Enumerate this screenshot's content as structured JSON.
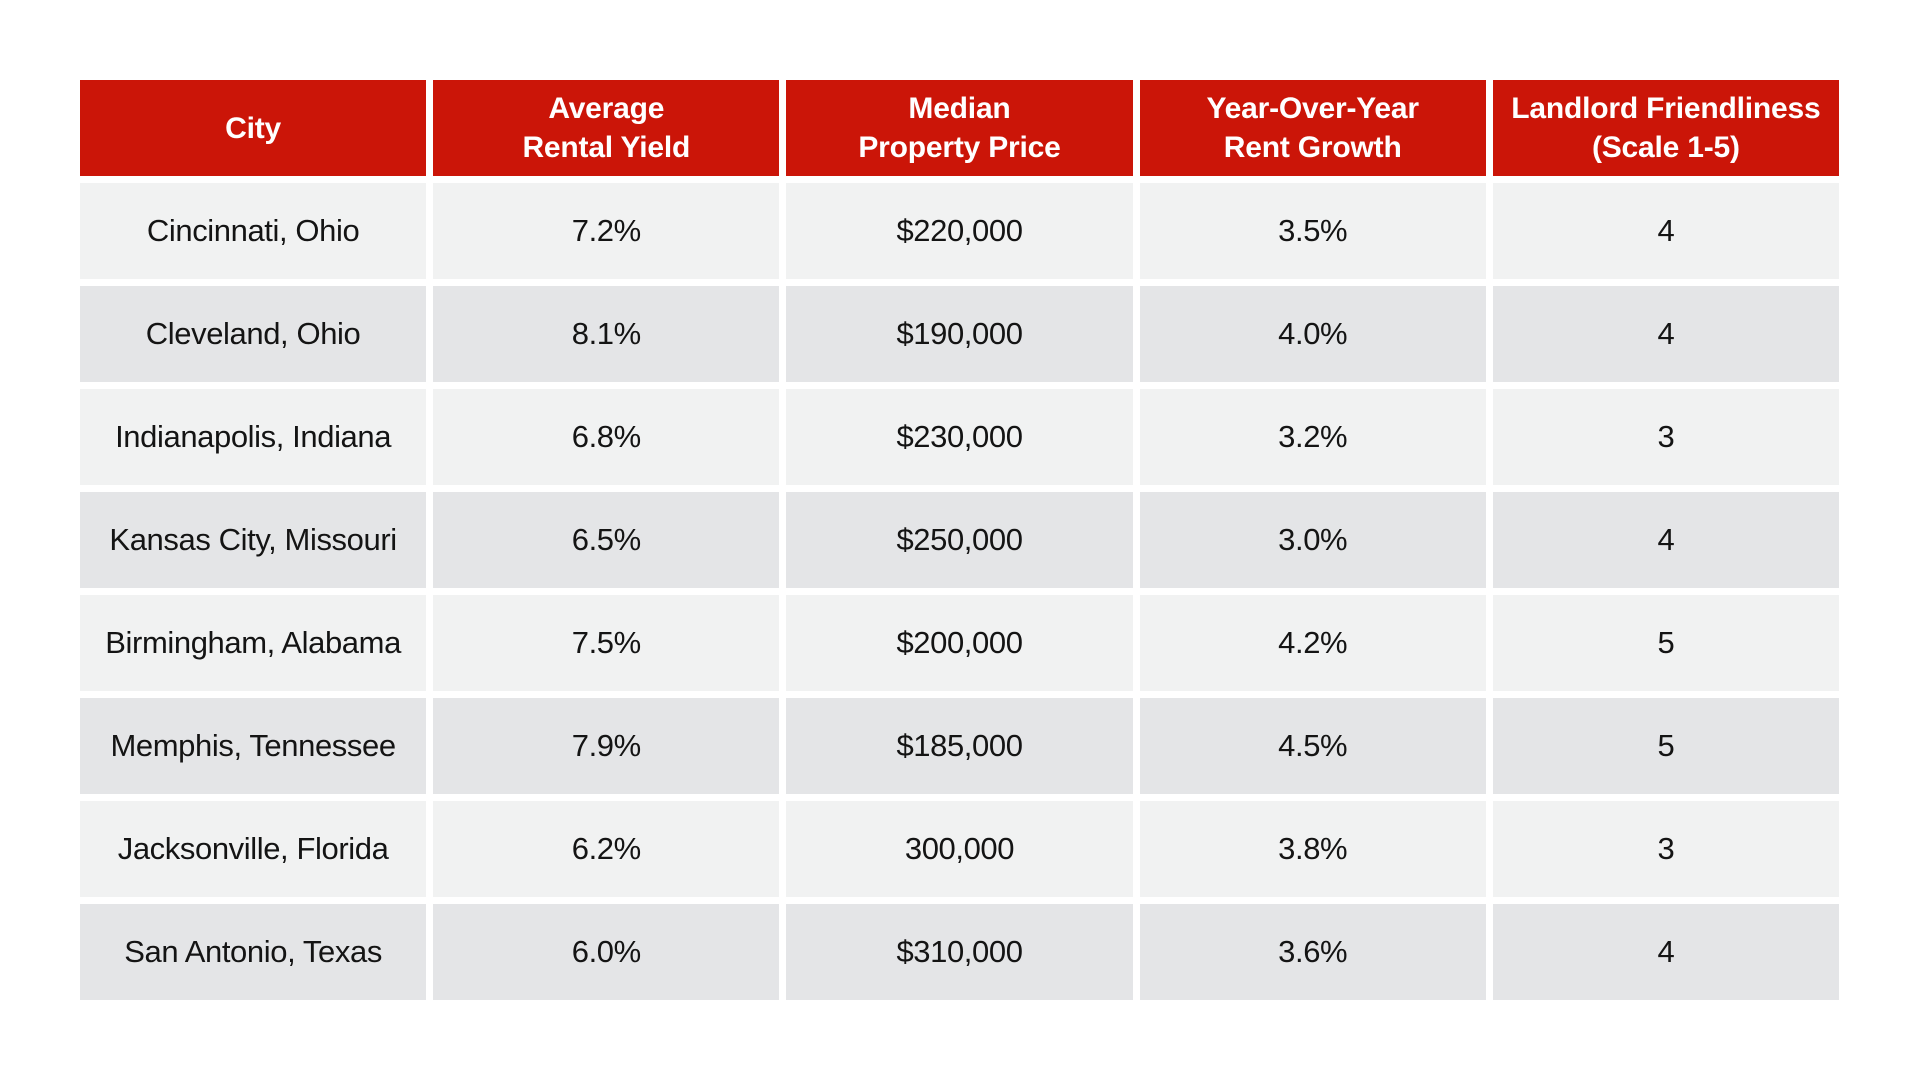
{
  "chart_data": {
    "type": "table",
    "title": "",
    "columns": [
      "City",
      "Average Rental Yield",
      "Median Property Price",
      "Year-Over-Year Rent Growth",
      "Landlord Friendliness (Scale 1-5)"
    ],
    "column_lines": [
      [
        "City"
      ],
      [
        "Average",
        "Rental Yield"
      ],
      [
        "Median",
        "Property Price"
      ],
      [
        "Year-Over-Year",
        "Rent Growth"
      ],
      [
        "Landlord Friendliness",
        "(Scale 1-5)"
      ]
    ],
    "rows": [
      [
        "Cincinnati, Ohio",
        "7.2%",
        "$220,000",
        "3.5%",
        "4"
      ],
      [
        "Cleveland, Ohio",
        "8.1%",
        "$190,000",
        "4.0%",
        "4"
      ],
      [
        "Indianapolis, Indiana",
        "6.8%",
        "$230,000",
        "3.2%",
        "3"
      ],
      [
        "Kansas City, Missouri",
        "6.5%",
        "$250,000",
        "3.0%",
        "4"
      ],
      [
        "Birmingham, Alabama",
        "7.5%",
        "$200,000",
        "4.2%",
        "5"
      ],
      [
        "Memphis, Tennessee",
        "7.9%",
        "$185,000",
        "4.5%",
        "5"
      ],
      [
        "Jacksonville, Florida",
        "6.2%",
        "300,000",
        "3.8%",
        "3"
      ],
      [
        "San Antonio, Texas",
        "6.0%",
        "$310,000",
        "3.6%",
        "4"
      ]
    ]
  },
  "colors": {
    "background": "#ffffff",
    "header_bg": "#cb1508",
    "header_text": "#ffffff",
    "row_light": "#f1f2f2",
    "row_dark": "#e4e5e7",
    "body_text": "#141414"
  }
}
